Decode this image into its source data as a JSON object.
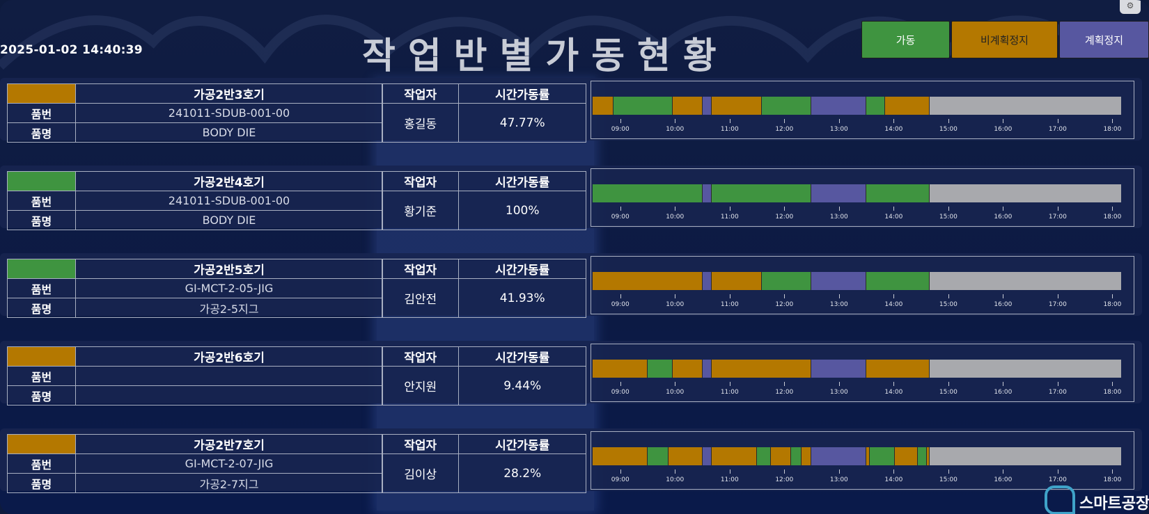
{
  "header": {
    "datetime": "2025-01-02 14:40:39",
    "title": "작업반별가동현황"
  },
  "legend": [
    {
      "key": "run",
      "label": "가동",
      "color": "#3f9440"
    },
    {
      "key": "unplanned",
      "label": "비계획정지",
      "color": "#b47800"
    },
    {
      "key": "planned",
      "label": "계획정지",
      "color": "#5757a0"
    }
  ],
  "colors": {
    "run": "#3f9440",
    "unplanned": "#b47800",
    "planned": "#5757a0",
    "future": "#a8a9ad"
  },
  "labels": {
    "part_no": "품번",
    "part_name": "품명",
    "worker": "작업자",
    "utilization": "시간가동률"
  },
  "timeline": {
    "ticks": [
      "09:00",
      "10:00",
      "11:00",
      "12:00",
      "13:00",
      "14:00",
      "15:00",
      "16:00",
      "17:00",
      "18:00"
    ]
  },
  "machines": [
    {
      "name": "가공2반3호기",
      "status": "unplanned",
      "part_no": "241011-SDUB-001-00",
      "part_name": "BODY DIE",
      "worker": "홍길동",
      "utilization": "47.77%",
      "segments": [
        {
          "start": "08:30",
          "end": "08:53",
          "state": "unplanned"
        },
        {
          "start": "08:53",
          "end": "09:58",
          "state": "run"
        },
        {
          "start": "09:58",
          "end": "10:31",
          "state": "unplanned"
        },
        {
          "start": "10:31",
          "end": "10:41",
          "state": "planned"
        },
        {
          "start": "10:41",
          "end": "11:36",
          "state": "unplanned"
        },
        {
          "start": "11:36",
          "end": "12:30",
          "state": "run"
        },
        {
          "start": "12:30",
          "end": "13:30",
          "state": "planned"
        },
        {
          "start": "13:30",
          "end": "13:51",
          "state": "run"
        },
        {
          "start": "13:51",
          "end": "14:40",
          "state": "unplanned"
        }
      ]
    },
    {
      "name": "가공2반4호기",
      "status": "run",
      "part_no": "241011-SDUB-001-00",
      "part_name": "BODY DIE",
      "worker": "황기준",
      "utilization": "100%",
      "segments": [
        {
          "start": "08:30",
          "end": "10:31",
          "state": "run"
        },
        {
          "start": "10:31",
          "end": "10:41",
          "state": "planned"
        },
        {
          "start": "10:41",
          "end": "12:30",
          "state": "run"
        },
        {
          "start": "12:30",
          "end": "13:30",
          "state": "planned"
        },
        {
          "start": "13:30",
          "end": "14:40",
          "state": "run"
        }
      ]
    },
    {
      "name": "가공2반5호기",
      "status": "run",
      "part_no": "GI-MCT-2-05-JIG",
      "part_name": "가공2-5지그",
      "worker": "김안전",
      "utilization": "41.93%",
      "segments": [
        {
          "start": "08:30",
          "end": "10:31",
          "state": "unplanned"
        },
        {
          "start": "10:31",
          "end": "10:41",
          "state": "planned"
        },
        {
          "start": "10:41",
          "end": "11:36",
          "state": "unplanned"
        },
        {
          "start": "11:36",
          "end": "12:30",
          "state": "run"
        },
        {
          "start": "12:30",
          "end": "13:30",
          "state": "planned"
        },
        {
          "start": "13:30",
          "end": "14:40",
          "state": "run"
        }
      ]
    },
    {
      "name": "가공2반6호기",
      "status": "unplanned",
      "part_no": "",
      "part_name": "",
      "worker": "안지원",
      "utilization": "9.44%",
      "segments": [
        {
          "start": "08:30",
          "end": "09:30",
          "state": "unplanned"
        },
        {
          "start": "09:30",
          "end": "09:58",
          "state": "run"
        },
        {
          "start": "09:58",
          "end": "10:31",
          "state": "unplanned"
        },
        {
          "start": "10:31",
          "end": "10:41",
          "state": "planned"
        },
        {
          "start": "10:41",
          "end": "12:30",
          "state": "unplanned"
        },
        {
          "start": "12:30",
          "end": "13:30",
          "state": "planned"
        },
        {
          "start": "13:30",
          "end": "14:40",
          "state": "unplanned"
        }
      ]
    },
    {
      "name": "가공2반7호기",
      "status": "unplanned",
      "part_no": "GI-MCT-2-07-JIG",
      "part_name": "가공2-7지그",
      "worker": "김이상",
      "utilization": "28.2%",
      "segments": [
        {
          "start": "08:30",
          "end": "09:30",
          "state": "unplanned"
        },
        {
          "start": "09:30",
          "end": "09:53",
          "state": "run"
        },
        {
          "start": "09:53",
          "end": "10:31",
          "state": "unplanned"
        },
        {
          "start": "10:31",
          "end": "10:41",
          "state": "planned"
        },
        {
          "start": "10:41",
          "end": "11:30",
          "state": "unplanned"
        },
        {
          "start": "11:30",
          "end": "11:46",
          "state": "run"
        },
        {
          "start": "11:46",
          "end": "12:08",
          "state": "unplanned"
        },
        {
          "start": "12:08",
          "end": "12:19",
          "state": "run"
        },
        {
          "start": "12:19",
          "end": "12:30",
          "state": "unplanned"
        },
        {
          "start": "12:30",
          "end": "13:30",
          "state": "planned"
        },
        {
          "start": "13:30",
          "end": "13:34",
          "state": "unplanned"
        },
        {
          "start": "13:34",
          "end": "14:02",
          "state": "run"
        },
        {
          "start": "14:02",
          "end": "14:27",
          "state": "unplanned"
        },
        {
          "start": "14:27",
          "end": "14:37",
          "state": "run"
        },
        {
          "start": "14:37",
          "end": "14:40",
          "state": "unplanned"
        }
      ]
    }
  ],
  "logo": {
    "text": "스마트공장"
  }
}
